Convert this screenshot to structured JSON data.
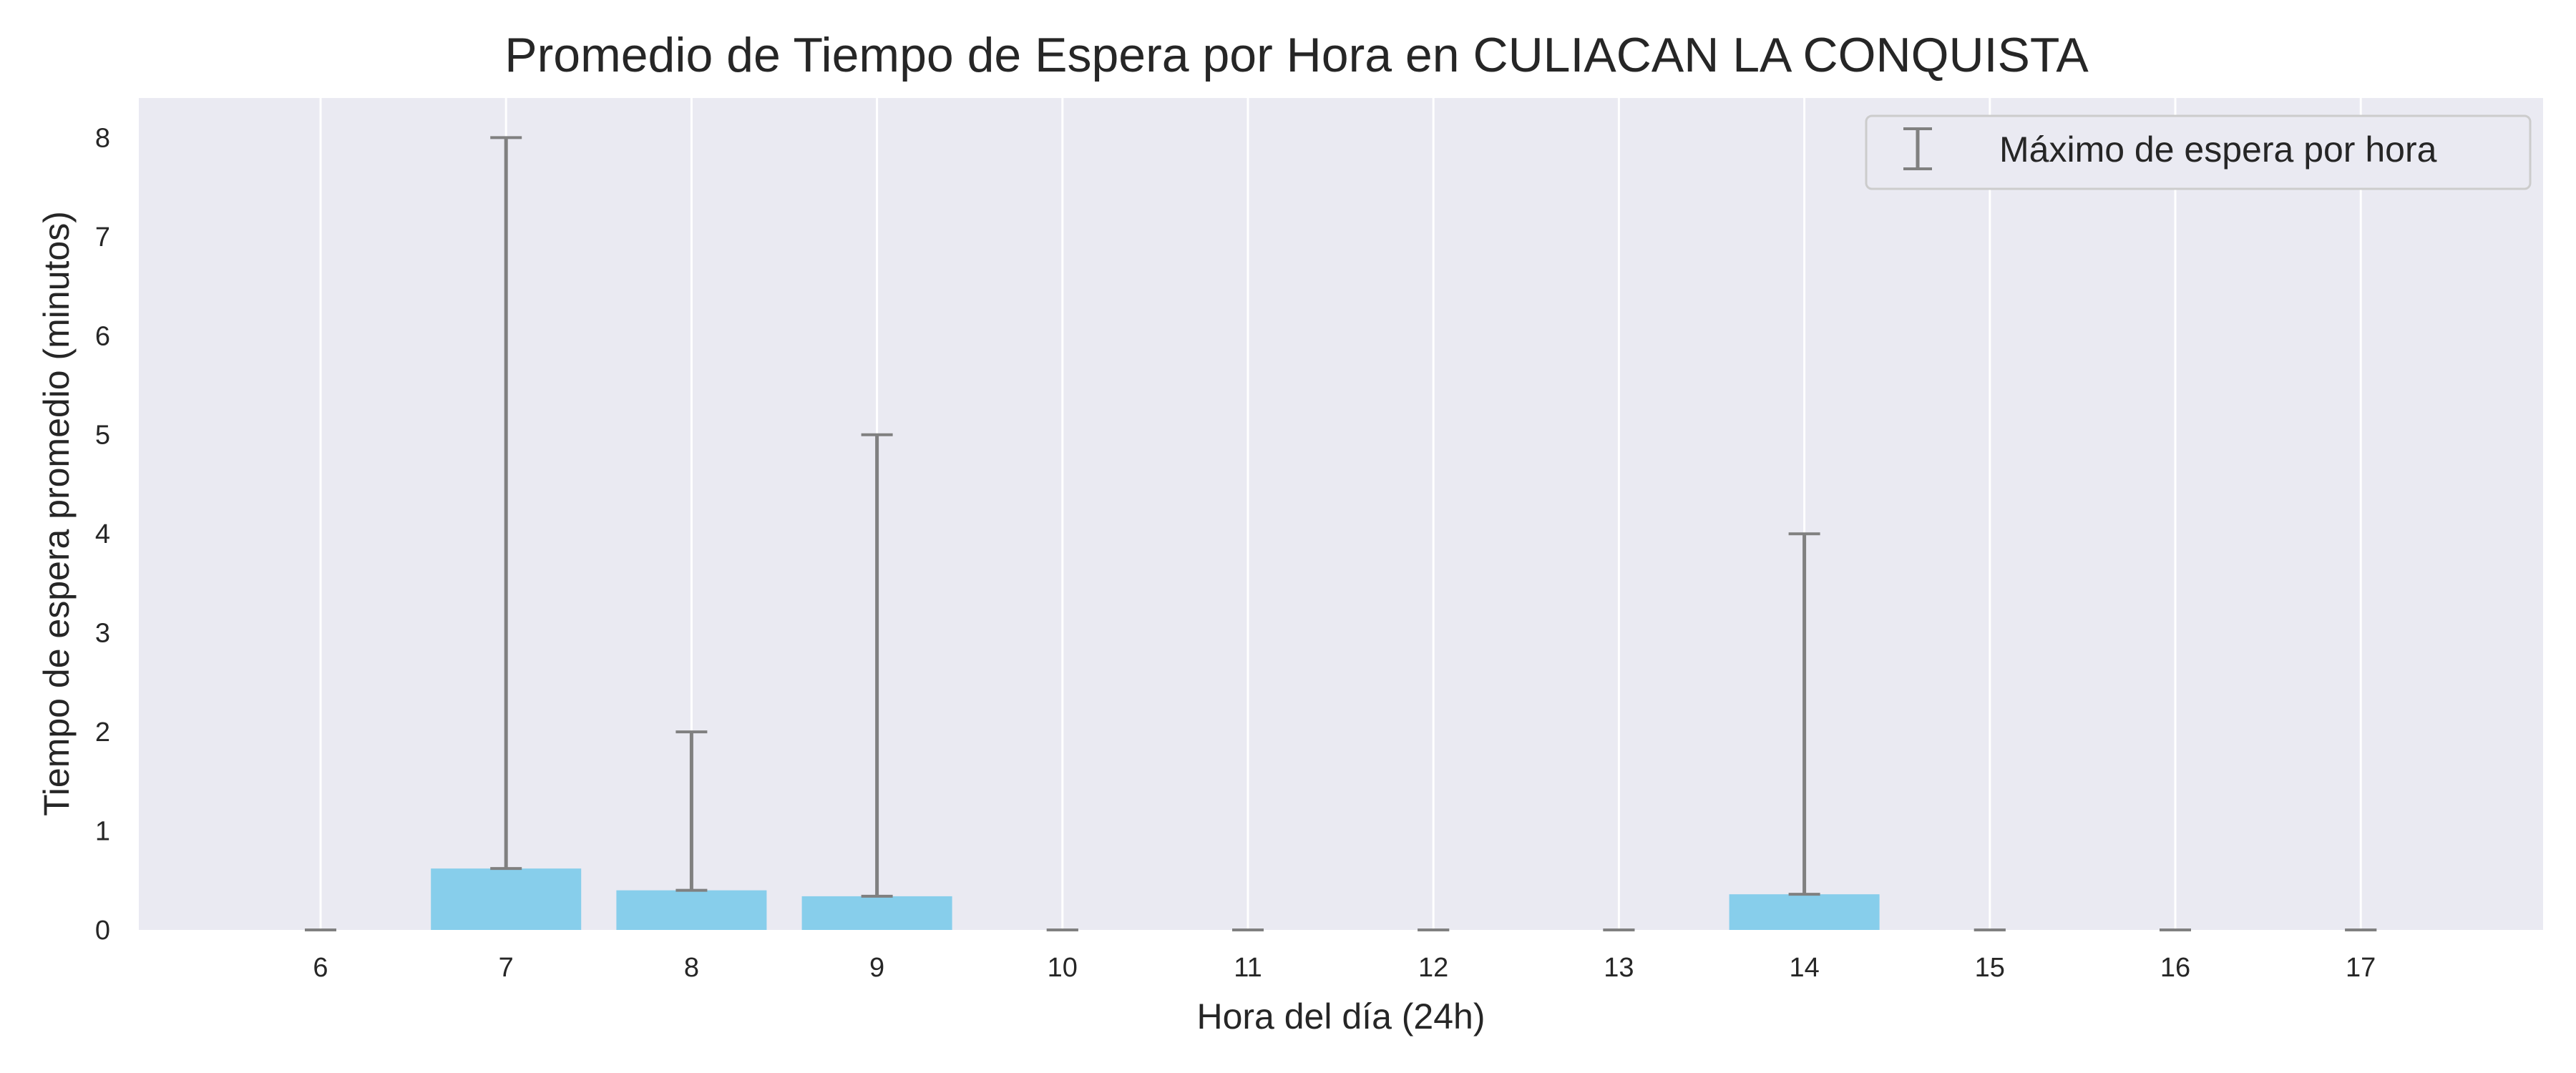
{
  "chart_data": {
    "type": "bar",
    "title": "Promedio de Tiempo de Espera por Hora en CULIACAN LA CONQUISTA",
    "xlabel": "Hora del día (24h)",
    "ylabel": "Tiempo de espera promedio (minutos)",
    "categories": [
      "6",
      "7",
      "8",
      "9",
      "10",
      "11",
      "12",
      "13",
      "14",
      "15",
      "16",
      "17"
    ],
    "values": [
      0,
      0.62,
      0.4,
      0.34,
      0,
      0,
      0,
      0,
      0.36,
      0,
      0,
      0
    ],
    "error_upper": [
      0,
      8,
      2,
      5,
      0,
      0,
      0,
      0,
      4,
      0,
      0,
      0
    ],
    "error_label": "Máximo de espera por hora",
    "ylim": [
      0,
      8.4
    ],
    "yticks": [
      "0",
      "1",
      "2",
      "3",
      "4",
      "5",
      "6",
      "7",
      "8"
    ],
    "grid": "vertical",
    "legend_position": "top-right",
    "colors": {
      "bar": "#87ceeb",
      "error": "#808080",
      "plot_background": "#eaeaf2",
      "grid": "#ffffff"
    }
  }
}
